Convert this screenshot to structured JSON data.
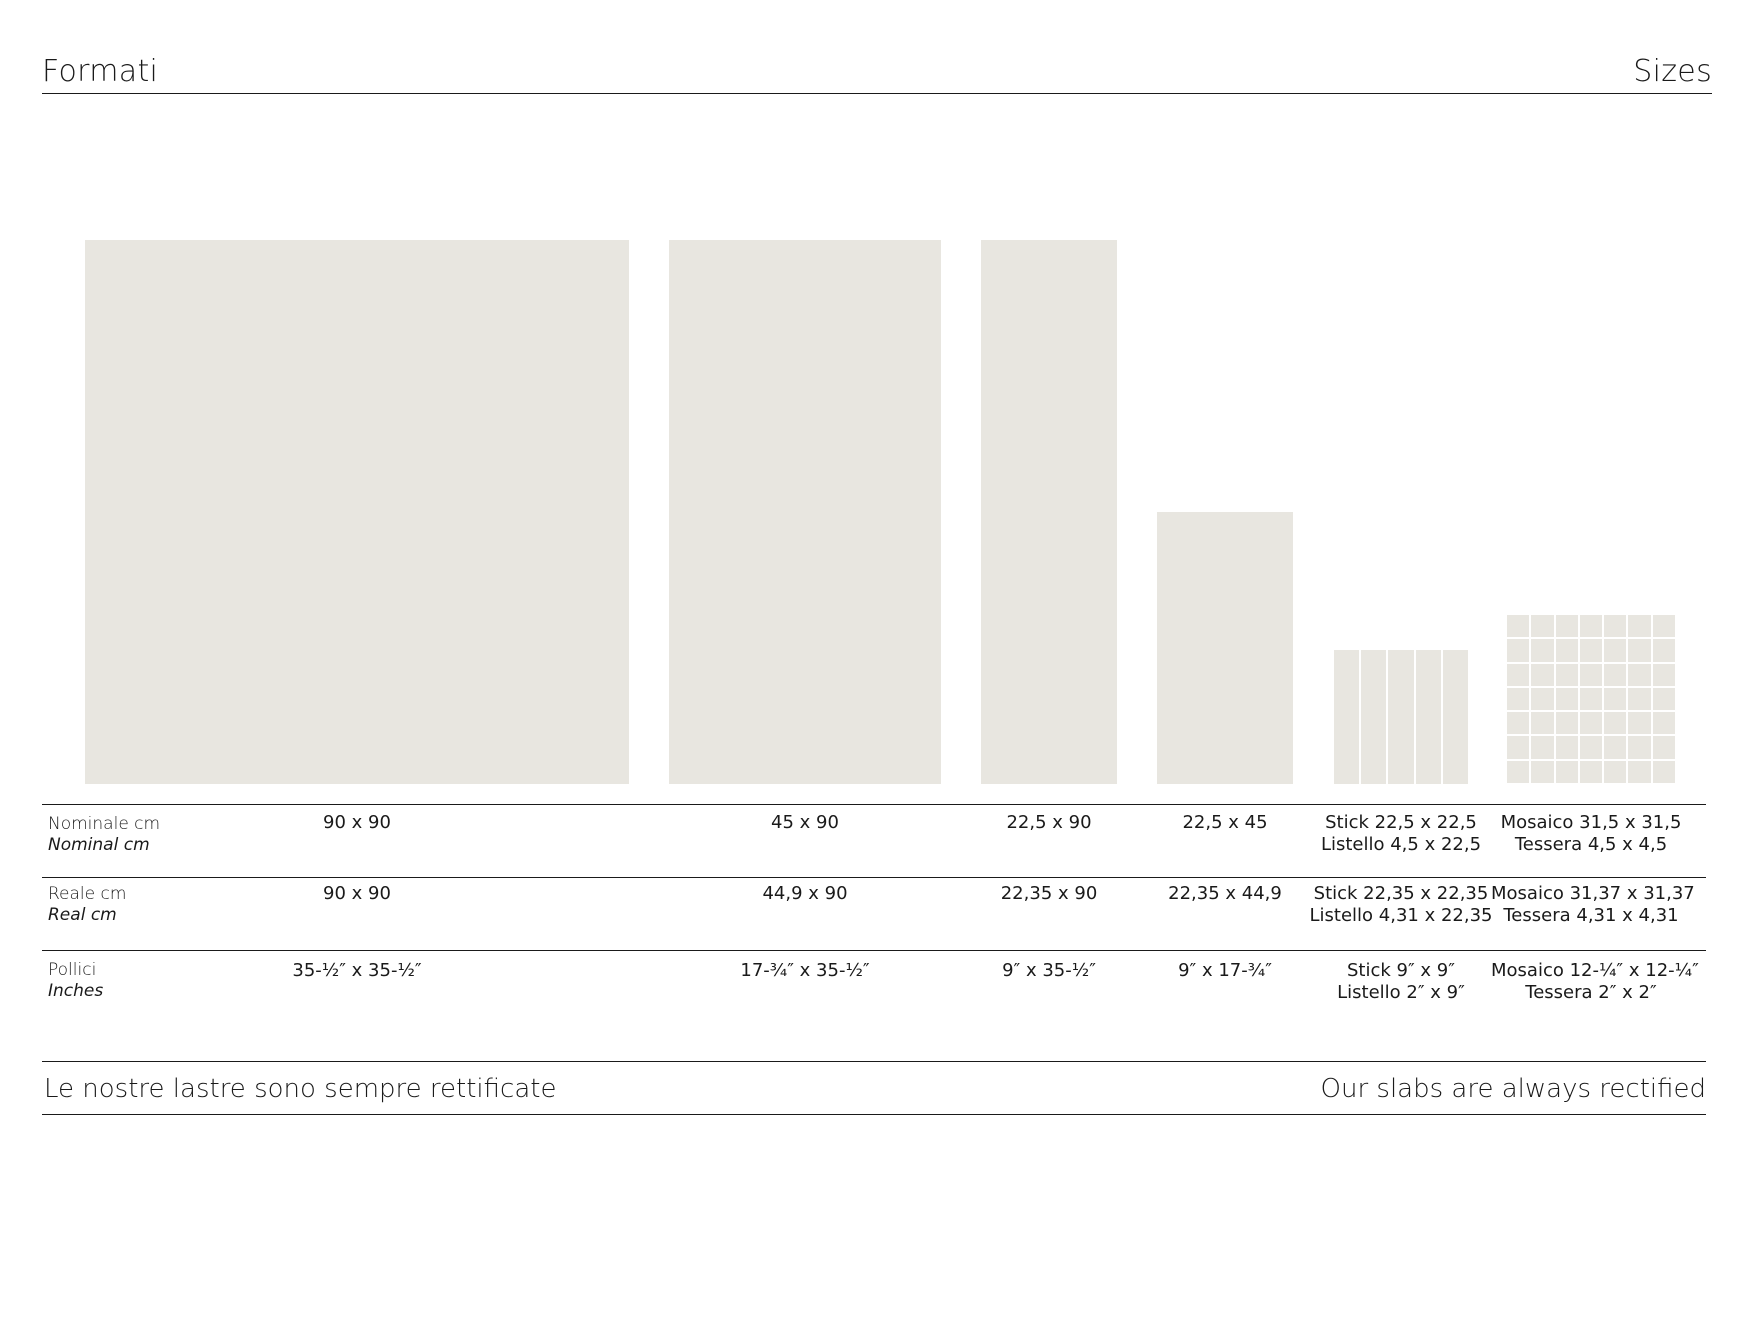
{
  "header": {
    "left_title": "Formati",
    "right_title": "Sizes"
  },
  "colors": {
    "tile": "#e8e6e0",
    "rule": "#1a1a1a",
    "text": "#1a1a1a"
  },
  "rows": [
    {
      "label": "Nominale cm",
      "label_en": "Nominal cm",
      "cells": [
        [
          "90 x 90"
        ],
        [
          "45 x 90"
        ],
        [
          "22,5 x 90"
        ],
        [
          "22,5 x 45"
        ],
        [
          "Stick 22,5 x 22,5",
          "Listello 4,5 x 22,5"
        ],
        [
          "Mosaico 31,5 x 31,5",
          "Tessera 4,5 x 4,5"
        ]
      ]
    },
    {
      "label": "Reale cm",
      "label_en": "Real cm",
      "cells": [
        [
          "90 x 90"
        ],
        [
          "44,9 x 90"
        ],
        [
          "22,35 x 90"
        ],
        [
          "22,35 x 44,9"
        ],
        [
          "Stick 22,35 x 22,35",
          "Listello 4,31 x 22,35"
        ],
        [
          "Mosaico 31,37 x 31,37",
          "Tessera 4,31 x 4,31"
        ]
      ]
    },
    {
      "label": "Pollici",
      "label_en": "Inches",
      "cells": [
        [
          "35-½″ x 35-½″"
        ],
        [
          "17-¾″ x 35-½″"
        ],
        [
          "9″ x 35-½″"
        ],
        [
          "9″ x 17-¾″"
        ],
        [
          "Stick 9″ x 9″",
          "Listello 2″ x 9″"
        ],
        [
          "Mosaico 12-¼″ x 12-¼″",
          "Tessera 2″ x 2″"
        ]
      ]
    }
  ],
  "footer": {
    "left_text": "Le nostre lastre sono sempre rettificate",
    "right_text": "Our slabs are always rectified"
  }
}
